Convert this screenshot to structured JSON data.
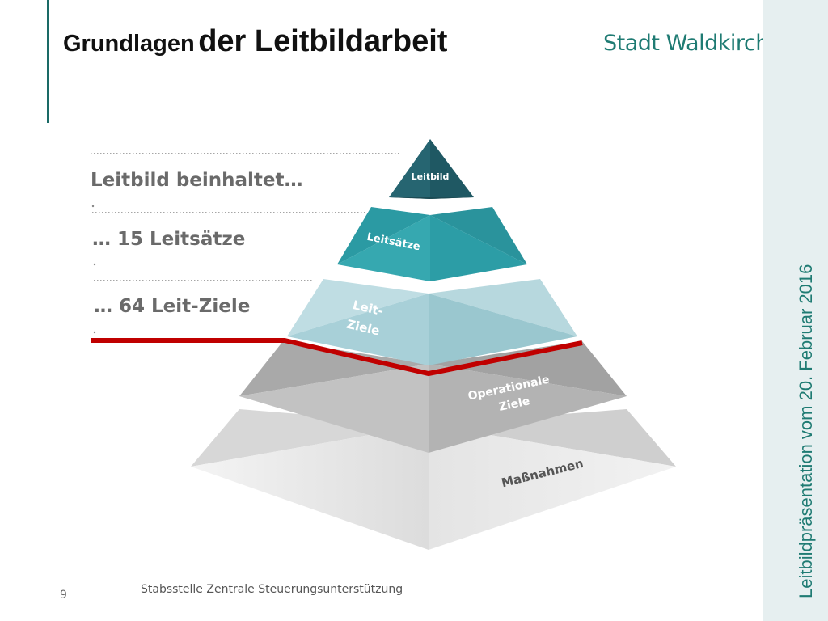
{
  "title": {
    "part1": "Grundlagen",
    "part2": "der Leitbildarbeit"
  },
  "logo": {
    "text": "Stadt Waldkirch"
  },
  "side_text": "Leitbildpräsentation vom 20. Februar 2016",
  "page_number": "9",
  "footer": "Stabsstelle Zentrale Steuerungsunterstützung",
  "callouts": [
    "Leitbild beinhaltet…",
    "… 15 Leitsätze",
    "… 64 Leit-Ziele"
  ],
  "pyramid": {
    "tier1": "Leitbild",
    "tier2": "Leitsätze",
    "tier3": [
      "Leit-",
      "Ziele"
    ],
    "tier4": [
      "Operationale",
      "Ziele"
    ],
    "tier5": "Maßnahmen"
  },
  "colors": {
    "accent": "#1f7b73",
    "divider_red": "#c00000",
    "side_band": "#e6eff0"
  }
}
